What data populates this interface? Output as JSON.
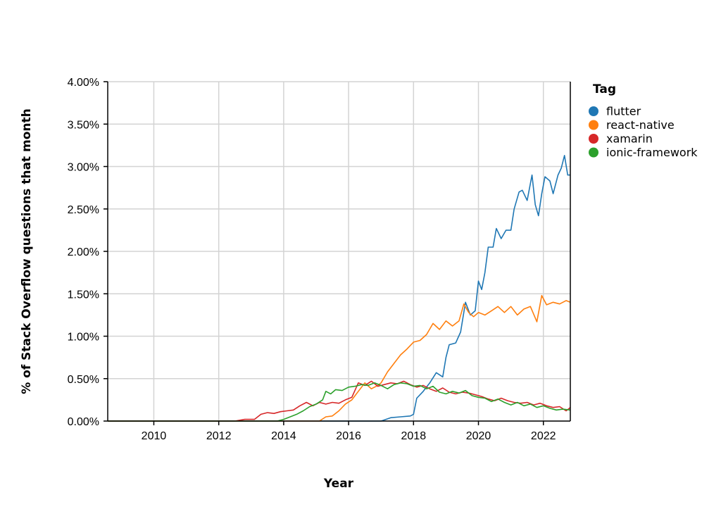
{
  "chart_data": {
    "type": "line",
    "title": "",
    "xlabel": "Year",
    "ylabel": "% of Stack Overflow questions that month",
    "x_range": [
      2008.58,
      2022.83
    ],
    "ylim": [
      0,
      0.04
    ],
    "x_ticks": [
      2010,
      2012,
      2014,
      2016,
      2018,
      2020,
      2022
    ],
    "x_tick_labels": [
      "2010",
      "2012",
      "2014",
      "2016",
      "2018",
      "2020",
      "2022"
    ],
    "y_ticks": [
      0,
      0.005,
      0.01,
      0.015,
      0.02,
      0.025,
      0.03,
      0.035,
      0.04
    ],
    "y_tick_labels": [
      "0.00%",
      "0.50%",
      "1.00%",
      "1.50%",
      "2.00%",
      "2.50%",
      "3.00%",
      "3.50%",
      "4.00%"
    ],
    "grid": true,
    "legend": {
      "title": "Tag",
      "position": "right"
    },
    "series": [
      {
        "name": "flutter",
        "color": "#1f77b4",
        "points": [
          [
            2008.58,
            0
          ],
          [
            2017.0,
            0
          ],
          [
            2017.3,
            0.0004
          ],
          [
            2017.6,
            0.0005
          ],
          [
            2017.9,
            0.0006
          ],
          [
            2018.0,
            0.0008
          ],
          [
            2018.1,
            0.0027
          ],
          [
            2018.3,
            0.0035
          ],
          [
            2018.5,
            0.0045
          ],
          [
            2018.7,
            0.0057
          ],
          [
            2018.9,
            0.0052
          ],
          [
            2019.0,
            0.0075
          ],
          [
            2019.1,
            0.009
          ],
          [
            2019.3,
            0.0092
          ],
          [
            2019.45,
            0.0105
          ],
          [
            2019.6,
            0.014
          ],
          [
            2019.75,
            0.0125
          ],
          [
            2019.9,
            0.013
          ],
          [
            2020.0,
            0.0165
          ],
          [
            2020.1,
            0.0155
          ],
          [
            2020.2,
            0.0175
          ],
          [
            2020.3,
            0.0205
          ],
          [
            2020.45,
            0.0205
          ],
          [
            2020.55,
            0.0227
          ],
          [
            2020.7,
            0.0215
          ],
          [
            2020.85,
            0.0225
          ],
          [
            2021.0,
            0.0225
          ],
          [
            2021.1,
            0.025
          ],
          [
            2021.25,
            0.027
          ],
          [
            2021.35,
            0.0272
          ],
          [
            2021.5,
            0.026
          ],
          [
            2021.65,
            0.029
          ],
          [
            2021.75,
            0.0255
          ],
          [
            2021.85,
            0.0242
          ],
          [
            2021.95,
            0.0268
          ],
          [
            2022.05,
            0.0288
          ],
          [
            2022.2,
            0.0283
          ],
          [
            2022.3,
            0.0268
          ],
          [
            2022.45,
            0.029
          ],
          [
            2022.55,
            0.0298
          ],
          [
            2022.65,
            0.0313
          ],
          [
            2022.75,
            0.029
          ],
          [
            2022.83,
            0.029
          ]
        ]
      },
      {
        "name": "react-native",
        "color": "#ff7f0e",
        "points": [
          [
            2008.58,
            0
          ],
          [
            2015.1,
            0
          ],
          [
            2015.3,
            0.0005
          ],
          [
            2015.5,
            0.0006
          ],
          [
            2015.7,
            0.0012
          ],
          [
            2015.9,
            0.002
          ],
          [
            2016.1,
            0.0025
          ],
          [
            2016.3,
            0.0035
          ],
          [
            2016.5,
            0.0045
          ],
          [
            2016.7,
            0.0038
          ],
          [
            2016.9,
            0.0042
          ],
          [
            2017.0,
            0.0045
          ],
          [
            2017.2,
            0.0058
          ],
          [
            2017.4,
            0.0068
          ],
          [
            2017.6,
            0.0078
          ],
          [
            2017.8,
            0.0085
          ],
          [
            2018.0,
            0.0093
          ],
          [
            2018.2,
            0.0095
          ],
          [
            2018.4,
            0.0102
          ],
          [
            2018.6,
            0.0115
          ],
          [
            2018.8,
            0.0108
          ],
          [
            2019.0,
            0.0118
          ],
          [
            2019.2,
            0.0112
          ],
          [
            2019.4,
            0.0118
          ],
          [
            2019.55,
            0.0138
          ],
          [
            2019.7,
            0.0128
          ],
          [
            2019.85,
            0.0123
          ],
          [
            2020.0,
            0.0128
          ],
          [
            2020.2,
            0.0125
          ],
          [
            2020.4,
            0.013
          ],
          [
            2020.6,
            0.0135
          ],
          [
            2020.8,
            0.0128
          ],
          [
            2021.0,
            0.0135
          ],
          [
            2021.2,
            0.0125
          ],
          [
            2021.4,
            0.0132
          ],
          [
            2021.6,
            0.0135
          ],
          [
            2021.8,
            0.0117
          ],
          [
            2021.95,
            0.0148
          ],
          [
            2022.1,
            0.0137
          ],
          [
            2022.3,
            0.014
          ],
          [
            2022.5,
            0.0138
          ],
          [
            2022.7,
            0.0142
          ],
          [
            2022.83,
            0.014
          ]
        ]
      },
      {
        "name": "xamarin",
        "color": "#d62728",
        "points": [
          [
            2008.58,
            0
          ],
          [
            2012.5,
            0
          ],
          [
            2012.8,
            0.0002
          ],
          [
            2013.1,
            0.0002
          ],
          [
            2013.3,
            0.0008
          ],
          [
            2013.5,
            0.001
          ],
          [
            2013.7,
            0.0009
          ],
          [
            2013.9,
            0.0011
          ],
          [
            2014.1,
            0.0012
          ],
          [
            2014.3,
            0.0013
          ],
          [
            2014.5,
            0.0018
          ],
          [
            2014.7,
            0.0022
          ],
          [
            2014.9,
            0.0018
          ],
          [
            2015.1,
            0.0022
          ],
          [
            2015.3,
            0.002
          ],
          [
            2015.5,
            0.0022
          ],
          [
            2015.7,
            0.0021
          ],
          [
            2015.9,
            0.0025
          ],
          [
            2016.1,
            0.0028
          ],
          [
            2016.3,
            0.0045
          ],
          [
            2016.5,
            0.0042
          ],
          [
            2016.7,
            0.0047
          ],
          [
            2016.9,
            0.0041
          ],
          [
            2017.1,
            0.0043
          ],
          [
            2017.3,
            0.0045
          ],
          [
            2017.5,
            0.0044
          ],
          [
            2017.7,
            0.0047
          ],
          [
            2017.9,
            0.0043
          ],
          [
            2018.1,
            0.004
          ],
          [
            2018.3,
            0.0042
          ],
          [
            2018.5,
            0.0038
          ],
          [
            2018.7,
            0.0035
          ],
          [
            2018.9,
            0.0039
          ],
          [
            2019.1,
            0.0034
          ],
          [
            2019.3,
            0.0032
          ],
          [
            2019.5,
            0.0034
          ],
          [
            2019.7,
            0.0033
          ],
          [
            2019.9,
            0.0031
          ],
          [
            2020.1,
            0.0029
          ],
          [
            2020.3,
            0.0026
          ],
          [
            2020.5,
            0.0024
          ],
          [
            2020.7,
            0.0027
          ],
          [
            2020.9,
            0.0024
          ],
          [
            2021.1,
            0.0022
          ],
          [
            2021.3,
            0.0021
          ],
          [
            2021.5,
            0.0022
          ],
          [
            2021.7,
            0.0019
          ],
          [
            2021.9,
            0.0021
          ],
          [
            2022.1,
            0.0018
          ],
          [
            2022.3,
            0.0016
          ],
          [
            2022.5,
            0.0017
          ],
          [
            2022.7,
            0.0012
          ],
          [
            2022.83,
            0.0016
          ]
        ]
      },
      {
        "name": "ionic-framework",
        "color": "#2ca02c",
        "points": [
          [
            2008.58,
            0
          ],
          [
            2013.8,
            0
          ],
          [
            2014.0,
            0.0002
          ],
          [
            2014.2,
            0.0005
          ],
          [
            2014.4,
            0.0008
          ],
          [
            2014.6,
            0.0012
          ],
          [
            2014.8,
            0.0017
          ],
          [
            2015.0,
            0.002
          ],
          [
            2015.2,
            0.0025
          ],
          [
            2015.3,
            0.0035
          ],
          [
            2015.45,
            0.0032
          ],
          [
            2015.6,
            0.0037
          ],
          [
            2015.8,
            0.0036
          ],
          [
            2016.0,
            0.004
          ],
          [
            2016.2,
            0.0041
          ],
          [
            2016.4,
            0.0043
          ],
          [
            2016.6,
            0.0042
          ],
          [
            2016.8,
            0.0045
          ],
          [
            2017.0,
            0.0042
          ],
          [
            2017.2,
            0.0038
          ],
          [
            2017.4,
            0.0043
          ],
          [
            2017.6,
            0.0045
          ],
          [
            2017.8,
            0.0044
          ],
          [
            2018.0,
            0.0041
          ],
          [
            2018.2,
            0.0042
          ],
          [
            2018.4,
            0.0038
          ],
          [
            2018.6,
            0.0041
          ],
          [
            2018.8,
            0.0034
          ],
          [
            2019.0,
            0.0032
          ],
          [
            2019.2,
            0.0035
          ],
          [
            2019.4,
            0.0033
          ],
          [
            2019.6,
            0.0036
          ],
          [
            2019.8,
            0.003
          ],
          [
            2020.0,
            0.0028
          ],
          [
            2020.2,
            0.0027
          ],
          [
            2020.4,
            0.0023
          ],
          [
            2020.6,
            0.0026
          ],
          [
            2020.8,
            0.0022
          ],
          [
            2021.0,
            0.0019
          ],
          [
            2021.2,
            0.0022
          ],
          [
            2021.4,
            0.0018
          ],
          [
            2021.6,
            0.002
          ],
          [
            2021.8,
            0.0016
          ],
          [
            2022.0,
            0.0018
          ],
          [
            2022.2,
            0.0015
          ],
          [
            2022.4,
            0.0013
          ],
          [
            2022.6,
            0.0014
          ],
          [
            2022.83,
            0.0013
          ]
        ]
      }
    ]
  }
}
